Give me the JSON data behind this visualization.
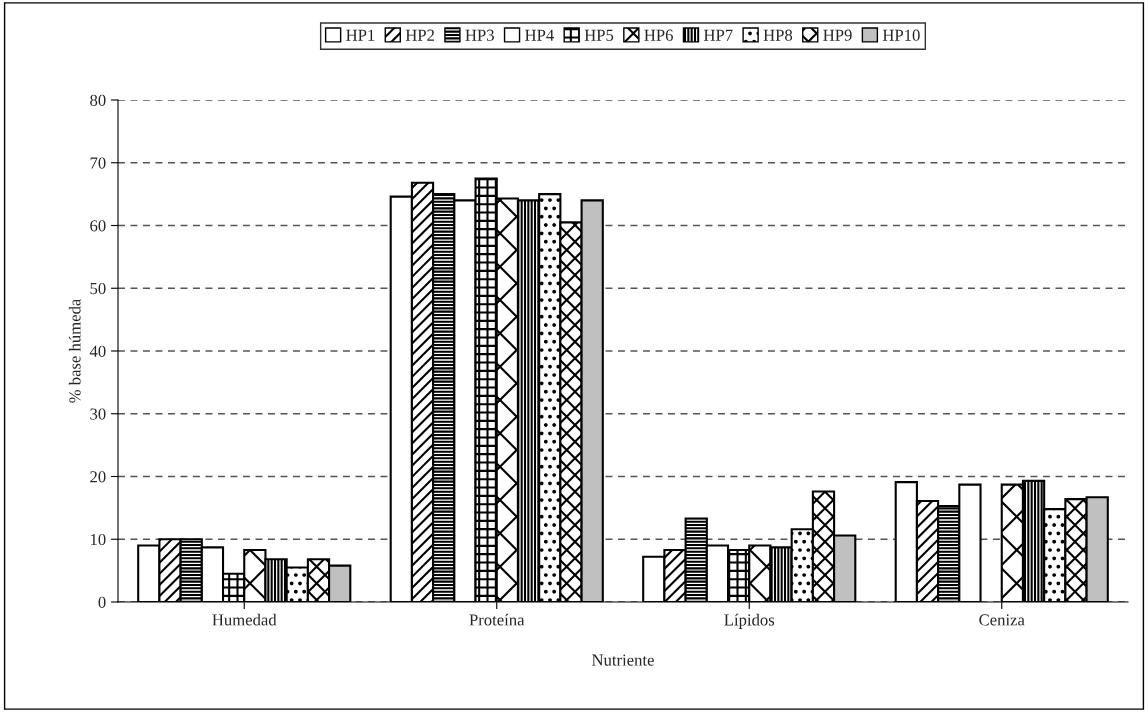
{
  "chart_data": {
    "type": "bar",
    "xlabel": "Nutriente",
    "ylabel": "% base húmeda",
    "categories": [
      "Humedad",
      "Proteína",
      "Lípidos",
      "Ceniza"
    ],
    "series": [
      {
        "name": "HP1",
        "color": "#ffffff",
        "values": [
          9,
          64.6,
          7.2,
          19.1
        ]
      },
      {
        "name": "HP2",
        "color": "#000000",
        "values": [
          10,
          66.8,
          8.3,
          16.1
        ]
      },
      {
        "name": "HP3",
        "color": "#000000",
        "values": [
          10,
          65,
          13.3,
          15.3
        ]
      },
      {
        "name": "HP4",
        "color": "#000000",
        "values": [
          8.7,
          64,
          9.0,
          18.7
        ]
      },
      {
        "name": "HP5",
        "color": "#000000",
        "values": [
          4.5,
          67.5,
          8.3,
          null
        ]
      },
      {
        "name": "HP6",
        "color": "#000000",
        "values": [
          8.3,
          64.3,
          9.0,
          18.7
        ]
      },
      {
        "name": "HP7",
        "color": "#000000",
        "values": [
          6.8,
          64,
          8.7,
          19.3
        ]
      },
      {
        "name": "HP8",
        "color": "#000000",
        "values": [
          5.5,
          65,
          11.6,
          14.8
        ]
      },
      {
        "name": "HP9",
        "color": "#000000",
        "values": [
          6.8,
          60.5,
          17.6,
          16.4
        ]
      },
      {
        "name": "HP10",
        "color": "#c0c0c0",
        "values": [
          5.8,
          64,
          10.6,
          16.7
        ]
      }
    ],
    "ylim": [
      0,
      80
    ],
    "yticks": [
      0,
      10,
      20,
      30,
      40,
      50,
      60,
      70,
      80
    ],
    "grid": "y",
    "legend": "top"
  }
}
